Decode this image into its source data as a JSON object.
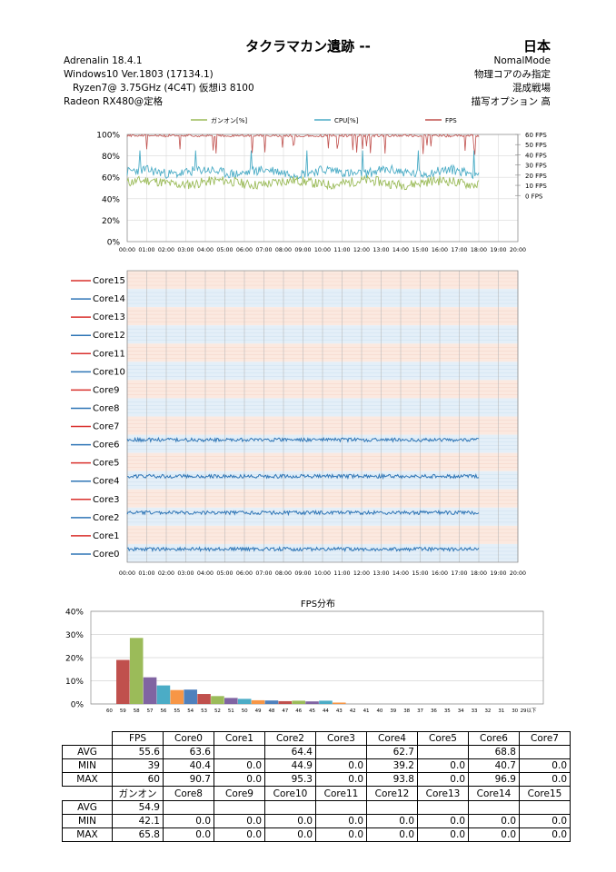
{
  "header": {
    "title": "タクラマカン遺跡 --",
    "country": "日本",
    "left_lines": [
      "Adrenalin  18.4.1",
      "Windows10  Ver.1803 (17134.1)",
      "Ryzen7@ 3.75GHz   (4C4T)     仮想i3 8100",
      "Radeon RX480@定格"
    ],
    "right_lines": [
      "NomalMode",
      "物理コアのみ指定",
      "混成戦場",
      "描写オプション  高"
    ]
  },
  "colors": {
    "ganon": "#9bbb59",
    "cpu": "#4bacc6",
    "fps": "#c0504d",
    "core_red": "#d9302c",
    "core_blue": "#2e75b6",
    "fps_bars": [
      "#4f81bd",
      "#c0504d",
      "#9bbb59",
      "#8064a2",
      "#4bacc6",
      "#f79646"
    ]
  },
  "chart_data": [
    {
      "type": "line",
      "title": "",
      "legend": [
        "ガンオン[%]",
        "CPU[%]",
        "FPS"
      ],
      "legend_position": "top",
      "x_ticks": [
        "00:00",
        "01:00",
        "02:00",
        "03:00",
        "04:00",
        "05:00",
        "06:00",
        "07:00",
        "08:00",
        "09:00",
        "10:00",
        "11:00",
        "12:00",
        "13:00",
        "14:00",
        "15:00",
        "16:00",
        "17:00",
        "18:00",
        "19:00",
        "20:00"
      ],
      "y_ticks": [
        "0%",
        "20%",
        "40%",
        "60%",
        "80%",
        "100%"
      ],
      "y2_ticks": [
        "0 FPS",
        "10 FPS",
        "20 FPS",
        "30 FPS",
        "40 FPS",
        "50 FPS",
        "60 FPS"
      ],
      "ylim": [
        0,
        100
      ],
      "y2lim": [
        0,
        60
      ],
      "series": [
        {
          "name": "ガンオン[%]",
          "axis": "left",
          "x_range": [
            "00:00",
            "18:00"
          ],
          "mean": 55,
          "min": 42.1,
          "max": 65.8
        },
        {
          "name": "CPU[%]",
          "axis": "left",
          "x_range": [
            "00:00",
            "18:00"
          ],
          "mean": 65,
          "min": 56,
          "max": 85
        },
        {
          "name": "FPS",
          "axis": "right",
          "x_range": [
            "00:00",
            "18:00"
          ],
          "mean": 55.6,
          "min": 39,
          "max": 60
        }
      ],
      "grid": true
    },
    {
      "type": "line",
      "title": "",
      "legend": [
        "Core15",
        "Core14",
        "Core13",
        "Core12",
        "Core11",
        "Core10",
        "Core9",
        "Core8",
        "Core7",
        "Core6",
        "Core5",
        "Core4",
        "Core3",
        "Core2",
        "Core1",
        "Core0"
      ],
      "legend_position": "left",
      "x_ticks": [
        "00:00",
        "01:00",
        "02:00",
        "03:00",
        "04:00",
        "05:00",
        "06:00",
        "07:00",
        "08:00",
        "09:00",
        "10:00",
        "11:00",
        "12:00",
        "13:00",
        "14:00",
        "15:00",
        "16:00",
        "17:00",
        "18:00",
        "19:00",
        "20:00"
      ],
      "active_cores": [
        "Core0",
        "Core2",
        "Core4",
        "Core6"
      ],
      "grid": true
    },
    {
      "type": "bar",
      "title": "FPS分布",
      "y_ticks": [
        "0%",
        "10%",
        "20%",
        "30%",
        "40%"
      ],
      "ylim": [
        0,
        40
      ],
      "categories": [
        "60",
        "59",
        "58",
        "57",
        "56",
        "55",
        "54",
        "53",
        "52",
        "51",
        "50",
        "49",
        "48",
        "47",
        "46",
        "45",
        "44",
        "43",
        "42",
        "41",
        "40",
        "39",
        "38",
        "37",
        "36",
        "35",
        "34",
        "33",
        "32",
        "31",
        "30",
        "29以下"
      ],
      "values": [
        0,
        19,
        28.5,
        11.5,
        8,
        6,
        6.2,
        4.3,
        3.4,
        2.6,
        2.2,
        1.6,
        1.5,
        1.2,
        1.4,
        1.1,
        1.4,
        0.6,
        0,
        0,
        0,
        0,
        0,
        0,
        0,
        0,
        0,
        0,
        0,
        0,
        0,
        0
      ]
    }
  ],
  "table": {
    "top_header": [
      "",
      "FPS",
      "Core0",
      "Core1",
      "Core2",
      "Core3",
      "Core4",
      "Core5",
      "Core6",
      "Core7"
    ],
    "top_rows": [
      {
        "label": "AVG",
        "values": [
          "55.6",
          "63.6",
          "",
          "64.4",
          "",
          "62.7",
          "",
          "68.8",
          ""
        ]
      },
      {
        "label": "MIN",
        "values": [
          "39",
          "40.4",
          "0.0",
          "44.9",
          "0.0",
          "39.2",
          "0.0",
          "40.7",
          "0.0"
        ]
      },
      {
        "label": "MAX",
        "values": [
          "60",
          "90.7",
          "0.0",
          "95.3",
          "0.0",
          "93.8",
          "0.0",
          "96.9",
          "0.0"
        ]
      }
    ],
    "bottom_header": [
      "",
      "ガンオン",
      "Core8",
      "Core9",
      "Core10",
      "Core11",
      "Core12",
      "Core13",
      "Core14",
      "Core15"
    ],
    "bottom_rows": [
      {
        "label": "AVG",
        "values": [
          "54.9",
          "",
          "",
          "",
          "",
          "",
          "",
          "",
          ""
        ]
      },
      {
        "label": "MIN",
        "values": [
          "42.1",
          "0.0",
          "0.0",
          "0.0",
          "0.0",
          "0.0",
          "0.0",
          "0.0",
          "0.0"
        ]
      },
      {
        "label": "MAX",
        "values": [
          "65.8",
          "0.0",
          "0.0",
          "0.0",
          "0.0",
          "0.0",
          "0.0",
          "0.0",
          "0.0"
        ]
      }
    ]
  }
}
